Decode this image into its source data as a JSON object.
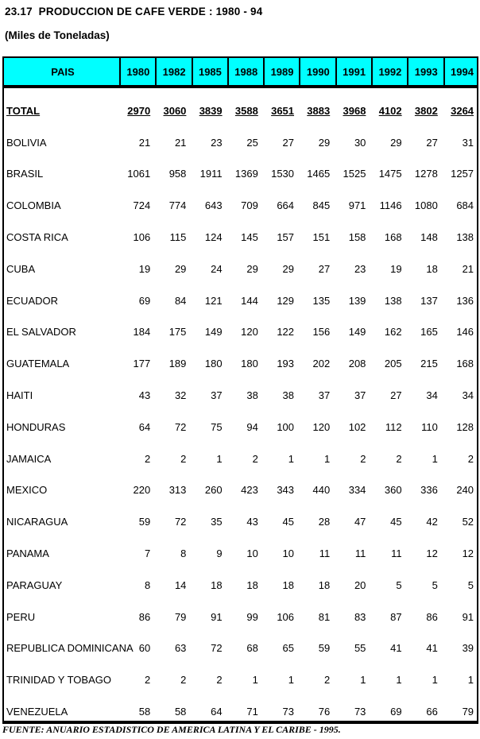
{
  "title": "23.17  PRODUCCION DE CAFE VERDE : 1980 - 94",
  "subtitle": "(Miles de Toneladas)",
  "source_note": "FUENTE: ANUARIO ESTADISTICO DE AMERICA LATINA Y EL CARIBE - 1995.",
  "colors": {
    "header_bg": "#00FFFF",
    "border": "#000000",
    "text": "#000000",
    "background": "#FFFFFF"
  },
  "chart_data": {
    "type": "table",
    "title": "23.17 PRODUCCION DE CAFE VERDE : 1980 - 94",
    "unit": "Miles de Toneladas",
    "label_header": "PAIS",
    "columns": [
      "1980",
      "1982",
      "1985",
      "1988",
      "1989",
      "1990",
      "1991",
      "1992",
      "1993",
      "1994"
    ],
    "rows": [
      {
        "label": "TOTAL",
        "emphasis": true,
        "values": [
          2970,
          3060,
          3839,
          3588,
          3651,
          3883,
          3968,
          4102,
          3802,
          3264
        ]
      },
      {
        "label": "BOLIVIA",
        "emphasis": false,
        "values": [
          21,
          21,
          23,
          25,
          27,
          29,
          30,
          29,
          27,
          31
        ]
      },
      {
        "label": "BRASIL",
        "emphasis": false,
        "values": [
          1061,
          958,
          1911,
          1369,
          1530,
          1465,
          1525,
          1475,
          1278,
          1257
        ]
      },
      {
        "label": "COLOMBIA",
        "emphasis": false,
        "values": [
          724,
          774,
          643,
          709,
          664,
          845,
          971,
          1146,
          1080,
          684
        ]
      },
      {
        "label": "COSTA RICA",
        "emphasis": false,
        "values": [
          106,
          115,
          124,
          145,
          157,
          151,
          158,
          168,
          148,
          138
        ]
      },
      {
        "label": "CUBA",
        "emphasis": false,
        "values": [
          19,
          29,
          24,
          29,
          29,
          27,
          23,
          19,
          18,
          21
        ]
      },
      {
        "label": "ECUADOR",
        "emphasis": false,
        "values": [
          69,
          84,
          121,
          144,
          129,
          135,
          139,
          138,
          137,
          136
        ]
      },
      {
        "label": "EL SALVADOR",
        "emphasis": false,
        "values": [
          184,
          175,
          149,
          120,
          122,
          156,
          149,
          162,
          165,
          146
        ]
      },
      {
        "label": "GUATEMALA",
        "emphasis": false,
        "values": [
          177,
          189,
          180,
          180,
          193,
          202,
          208,
          205,
          215,
          168
        ]
      },
      {
        "label": "HAITI",
        "emphasis": false,
        "values": [
          43,
          32,
          37,
          38,
          38,
          37,
          37,
          27,
          34,
          34
        ]
      },
      {
        "label": "HONDURAS",
        "emphasis": false,
        "values": [
          64,
          72,
          75,
          94,
          100,
          120,
          102,
          112,
          110,
          128
        ]
      },
      {
        "label": "JAMAICA",
        "emphasis": false,
        "values": [
          2,
          2,
          1,
          2,
          1,
          1,
          2,
          2,
          1,
          2
        ]
      },
      {
        "label": "MEXICO",
        "emphasis": false,
        "values": [
          220,
          313,
          260,
          423,
          343,
          440,
          334,
          360,
          336,
          240
        ]
      },
      {
        "label": "NICARAGUA",
        "emphasis": false,
        "values": [
          59,
          72,
          35,
          43,
          45,
          28,
          47,
          45,
          42,
          52
        ]
      },
      {
        "label": "PANAMA",
        "emphasis": false,
        "values": [
          7,
          8,
          9,
          10,
          10,
          11,
          11,
          11,
          12,
          12
        ]
      },
      {
        "label": "PARAGUAY",
        "emphasis": false,
        "values": [
          8,
          14,
          18,
          18,
          18,
          18,
          20,
          5,
          5,
          5
        ]
      },
      {
        "label": "PERU",
        "emphasis": false,
        "values": [
          86,
          79,
          91,
          99,
          106,
          81,
          83,
          87,
          86,
          91
        ]
      },
      {
        "label": "REPUBLICA DOMINICANA",
        "emphasis": false,
        "values": [
          60,
          63,
          72,
          68,
          65,
          59,
          55,
          41,
          41,
          39
        ]
      },
      {
        "label": "TRINIDAD Y TOBAGO",
        "emphasis": false,
        "values": [
          2,
          2,
          2,
          1,
          1,
          2,
          1,
          1,
          1,
          1
        ]
      },
      {
        "label": "VENEZUELA",
        "emphasis": false,
        "values": [
          58,
          58,
          64,
          71,
          73,
          76,
          73,
          69,
          66,
          79
        ]
      }
    ]
  }
}
